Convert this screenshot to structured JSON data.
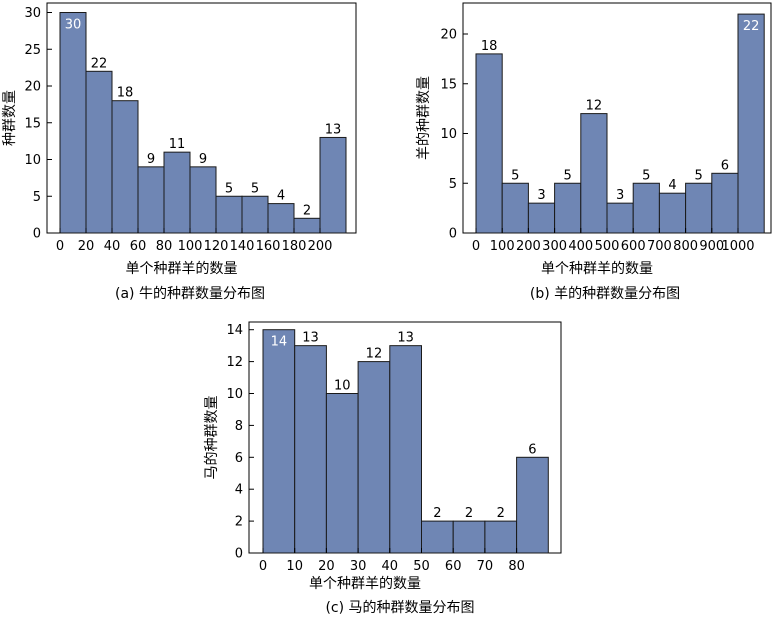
{
  "chart_data": [
    {
      "type": "bar",
      "categories": [
        "0-20",
        "20-40",
        "40-60",
        "60-80",
        "80-100",
        "100-120",
        "120-140",
        "140-160",
        "160-180",
        "180-200",
        "200+"
      ],
      "values": [
        30,
        22,
        18,
        9,
        11,
        9,
        5,
        5,
        4,
        2,
        13
      ],
      "xticks": [
        "0",
        "20",
        "40",
        "60",
        "80",
        "100",
        "120",
        "140",
        "160",
        "180",
        "200"
      ],
      "yticks": [
        "0",
        "5",
        "10",
        "15",
        "20",
        "25",
        "30"
      ],
      "ylim": [
        0,
        31
      ],
      "xlabel": "单个种群羊的数量",
      "ylabel": "种群数量",
      "caption": "(a) 牛的种群数量分布图",
      "bar_color": "#6f86b4"
    },
    {
      "type": "bar",
      "categories": [
        "0-100",
        "100-200",
        "200-300",
        "300-400",
        "400-500",
        "500-600",
        "600-700",
        "700-800",
        "800-900",
        "900-1000",
        "1000+"
      ],
      "values": [
        18,
        5,
        3,
        5,
        12,
        3,
        5,
        4,
        5,
        6,
        22
      ],
      "xticks": [
        "0",
        "100",
        "200",
        "300",
        "400",
        "500",
        "600",
        "700",
        "800",
        "900",
        "1000"
      ],
      "yticks": [
        "0",
        "5",
        "10",
        "15",
        "20"
      ],
      "ylim": [
        0,
        23
      ],
      "xlabel": "单个种群羊的数量",
      "ylabel": "羊的种群数量",
      "caption": "(b) 羊的种群数量分布图",
      "bar_color": "#6f86b4"
    },
    {
      "type": "bar",
      "categories": [
        "0-10",
        "10-20",
        "20-30",
        "30-40",
        "40-50",
        "50-60",
        "60-70",
        "70-80",
        "80+"
      ],
      "values": [
        14,
        13,
        10,
        12,
        13,
        2,
        2,
        2,
        6
      ],
      "xticks": [
        "0",
        "10",
        "20",
        "30",
        "40",
        "50",
        "60",
        "70",
        "80"
      ],
      "yticks": [
        "0",
        "2",
        "4",
        "6",
        "8",
        "10",
        "12",
        "14"
      ],
      "ylim": [
        0,
        14.5
      ],
      "xlabel": "单个种群羊的数量",
      "ylabel": "马的种群数量",
      "caption": "(c) 马的种群数量分布图",
      "bar_color": "#6f86b4"
    }
  ]
}
